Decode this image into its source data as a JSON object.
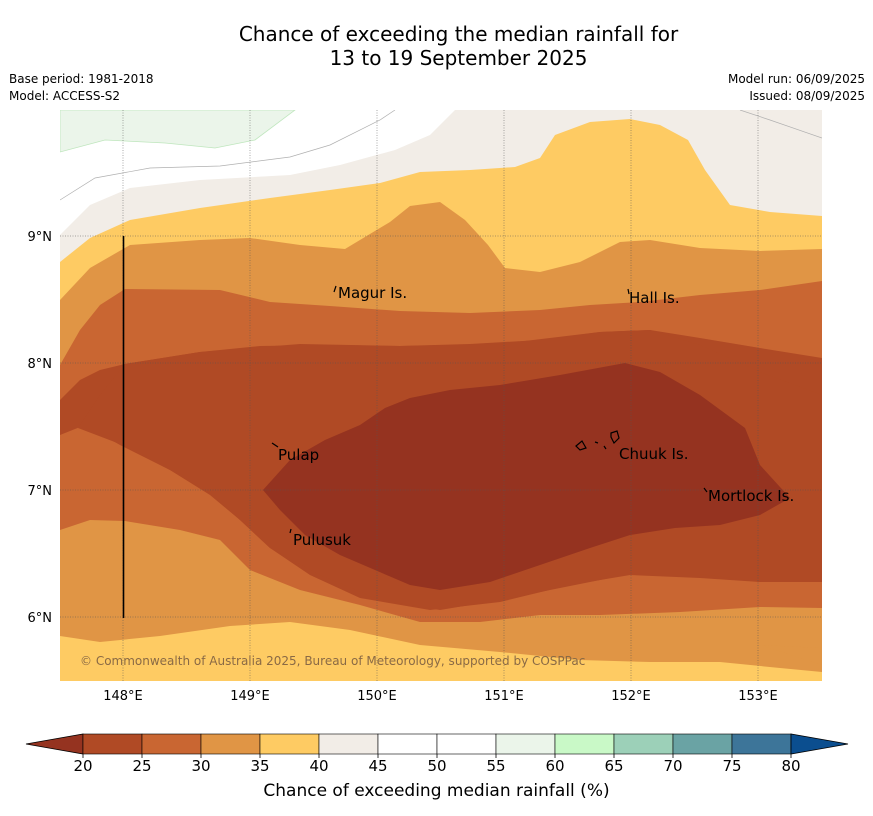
{
  "title": {
    "line1": "Chance of exceeding the median rainfall for",
    "line2": "13 to 19 September 2025"
  },
  "meta": {
    "base_period": "Base period: 1981-2018",
    "model": "Model: ACCESS-S2",
    "model_run": "Model run: 06/09/2025",
    "issued": "Issued: 08/09/2025"
  },
  "map": {
    "lon_labels": [
      "148°E",
      "149°E",
      "150°E",
      "151°E",
      "152°E",
      "153°E"
    ],
    "lat_labels": [
      "9°N",
      "8°N",
      "7°N",
      "6°N"
    ],
    "places": {
      "magur": "Magur Is.",
      "hall": "Hall Is.",
      "pulap": "Pulap",
      "chuuk": "Chuuk Is.",
      "mortlock": "Mortlock Is.",
      "pulusuk": "Pulusuk"
    },
    "copyright": "© Commonwealth of Australia 2025, Bureau of Meteorology, supported by COSPPac"
  },
  "colorbar": {
    "title": "Chance of exceeding median rainfall (%)",
    "ticks": [
      "20",
      "25",
      "30",
      "35",
      "40",
      "45",
      "50",
      "55",
      "60",
      "65",
      "70",
      "75",
      "80"
    ],
    "colors": {
      "under": "#953320",
      "b20_25": "#b04a25",
      "b25_30": "#c96632",
      "b30_35": "#e09545",
      "b35_40": "#fecb63",
      "b40_45": "#f2ede7",
      "b45_50": "#ffffff",
      "b50_55": "#ffffff",
      "b55_60": "#ebf5ea",
      "b60_65": "#c9f9c7",
      "b65_70": "#9cd0b8",
      "b70_75": "#6aa3a4",
      "b75_80": "#3d7599",
      "over": "#0b4e8f"
    }
  }
}
